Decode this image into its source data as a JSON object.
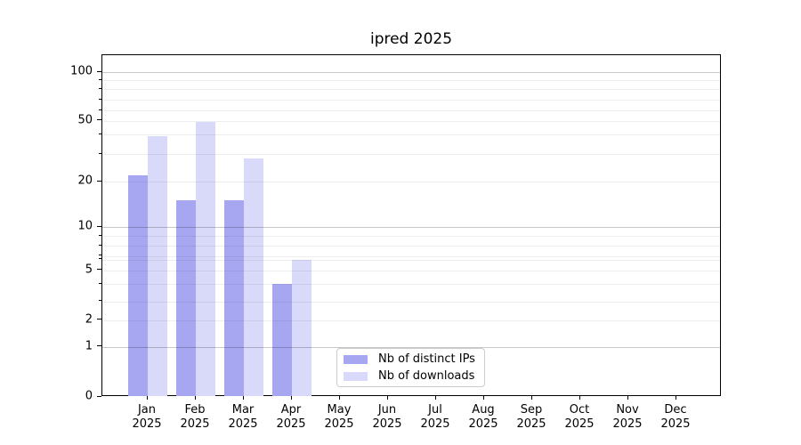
{
  "chart_data": {
    "type": "bar",
    "title": "ipred 2025",
    "categories": [
      "Jan",
      "Feb",
      "Mar",
      "Apr",
      "May",
      "Jun",
      "Jul",
      "Aug",
      "Sep",
      "Oct",
      "Nov",
      "Dec"
    ],
    "x_tick_year": "2025",
    "series": [
      {
        "name": "Nb of distinct IPs",
        "color": "#a7a7f1",
        "values": [
          22,
          15,
          15,
          4,
          0,
          0,
          0,
          0,
          0,
          0,
          0,
          0
        ]
      },
      {
        "name": "Nb of downloads",
        "color": "#d9d9fa",
        "values": [
          39,
          49,
          28,
          6,
          0,
          0,
          0,
          0,
          0,
          0,
          0,
          0
        ]
      }
    ],
    "yticks": [
      0,
      1,
      2,
      5,
      10,
      20,
      50,
      100
    ],
    "ylim": [
      0,
      130
    ],
    "yscale": "symlog",
    "grid": "horizontal major+minor log gridlines",
    "legend_position": "lower center"
  }
}
